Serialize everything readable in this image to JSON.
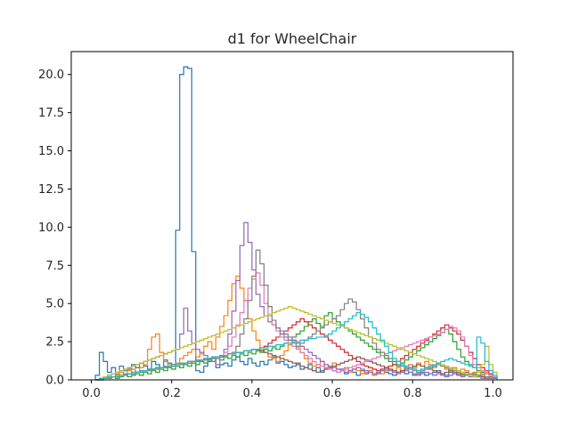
{
  "chart_data": {
    "type": "histogram-step",
    "title": "d1 for WheelChair",
    "xlabel": "",
    "ylabel": "",
    "xlim": [
      -0.05,
      1.05
    ],
    "ylim": [
      0,
      21.5
    ],
    "xticks": [
      0.0,
      0.2,
      0.4,
      0.6,
      0.8,
      1.0
    ],
    "xtick_labels": [
      "0.0",
      "0.2",
      "0.4",
      "0.6",
      "0.8",
      "1.0"
    ],
    "yticks": [
      0.0,
      2.5,
      5.0,
      7.5,
      10.0,
      12.5,
      15.0,
      17.5,
      20.0
    ],
    "ytick_labels": [
      "0.0",
      "2.5",
      "5.0",
      "7.5",
      "10.0",
      "12.5",
      "15.0",
      "17.5",
      "20.0"
    ],
    "grid": false,
    "bin_width": 0.01,
    "series": [
      {
        "color": "#1f77b4",
        "x_start": 0.01,
        "values": [
          0.3,
          1.8,
          1.2,
          0.5,
          0.8,
          0.4,
          0.9,
          0.6,
          0.7,
          1.0,
          0.8,
          1.1,
          0.9,
          0.7,
          1.2,
          1.0,
          0.8,
          1.3,
          1.1,
          1.0,
          9.8,
          20.0,
          20.5,
          20.4,
          8.4,
          0.6,
          0.5,
          0.9,
          1.2,
          1.4,
          0.8,
          1.0,
          1.1,
          0.9,
          1.3,
          1.5,
          1.2,
          1.0,
          1.4,
          1.1,
          0.9,
          1.2,
          1.0,
          1.3,
          1.5,
          1.1,
          1.2,
          1.0,
          0.8,
          0.9,
          1.1,
          0.7,
          0.8,
          1.0,
          0.6,
          0.8,
          0.5,
          0.7,
          0.9,
          0.6,
          0.5,
          0.7,
          0.4,
          0.6,
          0.5,
          0.3,
          0.6,
          0.4,
          0.5,
          0.3,
          0.4,
          0.6,
          0.5,
          0.4,
          0.3,
          0.5,
          0.6,
          0.4,
          0.5,
          0.3,
          0.4,
          0.5,
          0.3,
          0.4,
          0.5,
          0.6,
          0.4,
          0.3,
          0.5,
          0.4,
          0.3,
          0.4,
          0.5,
          0.3,
          0.4,
          0.3,
          0.5,
          0.4,
          0.3,
          0.2
        ]
      },
      {
        "color": "#ff7f0e",
        "x_start": 0.01,
        "values": [
          0.0,
          0.1,
          0.2,
          0.3,
          0.2,
          0.4,
          0.5,
          0.3,
          0.6,
          0.7,
          0.5,
          0.8,
          1.0,
          2.0,
          2.8,
          3.0,
          1.8,
          1.2,
          1.0,
          0.9,
          1.1,
          1.4,
          1.6,
          1.8,
          2.0,
          1.5,
          1.7,
          2.2,
          2.5,
          2.0,
          2.8,
          3.5,
          4.2,
          5.2,
          6.3,
          6.8,
          6.0,
          5.2,
          4.0,
          3.2,
          2.6,
          2.0,
          1.8,
          1.5,
          1.4,
          1.2,
          1.6,
          1.9,
          2.3,
          2.6,
          2.1,
          1.8,
          1.4,
          1.1,
          0.9,
          1.0,
          1.2,
          0.8,
          0.9,
          1.1,
          0.7,
          0.6,
          0.8,
          0.5,
          0.7,
          0.6,
          0.4,
          0.5,
          0.6,
          0.3,
          0.5,
          0.4,
          0.6,
          0.7,
          0.5,
          0.8,
          0.6,
          0.9,
          1.0,
          0.8,
          1.1,
          0.9,
          1.2,
          1.0,
          0.8,
          1.1,
          0.9,
          0.7,
          0.6,
          0.8,
          0.5,
          0.7,
          0.6,
          0.4,
          0.5,
          0.3,
          0.4,
          0.5,
          0.3,
          0.2
        ]
      },
      {
        "color": "#2ca02c",
        "x_start": 0.01,
        "values": [
          0.0,
          0.0,
          0.1,
          0.1,
          0.2,
          0.1,
          0.2,
          0.3,
          0.2,
          0.3,
          0.4,
          0.3,
          0.5,
          0.4,
          0.6,
          0.5,
          0.7,
          0.6,
          0.8,
          0.7,
          0.9,
          0.8,
          1.0,
          0.9,
          1.1,
          1.0,
          1.2,
          1.1,
          1.3,
          1.2,
          1.4,
          1.3,
          1.5,
          1.4,
          1.6,
          1.5,
          1.7,
          1.6,
          1.8,
          1.7,
          1.9,
          1.8,
          2.0,
          1.9,
          2.1,
          2.0,
          2.2,
          2.4,
          2.6,
          2.8,
          3.0,
          3.2,
          3.5,
          3.8,
          4.0,
          3.7,
          3.5,
          4.2,
          4.4,
          4.0,
          3.8,
          3.6,
          3.4,
          3.2,
          3.0,
          2.8,
          2.6,
          2.4,
          2.2,
          2.0,
          1.8,
          1.6,
          1.4,
          1.2,
          1.0,
          0.9,
          1.1,
          1.3,
          1.5,
          1.7,
          1.9,
          2.1,
          2.3,
          2.5,
          2.7,
          2.9,
          3.1,
          3.3,
          3.0,
          2.5,
          2.0,
          1.5,
          1.2,
          1.0,
          0.8,
          0.6,
          0.5,
          0.4,
          0.3,
          0.2
        ]
      },
      {
        "color": "#d62728",
        "x_start": 0.01,
        "values": [
          0.0,
          0.1,
          0.1,
          0.2,
          0.2,
          0.3,
          0.3,
          0.4,
          0.4,
          0.5,
          0.5,
          0.6,
          0.6,
          0.7,
          0.7,
          0.8,
          0.8,
          0.9,
          0.9,
          1.0,
          1.0,
          1.1,
          1.1,
          1.2,
          1.2,
          1.3,
          1.3,
          1.4,
          1.4,
          1.5,
          1.5,
          1.6,
          1.6,
          1.7,
          1.7,
          1.8,
          1.8,
          1.9,
          1.9,
          2.0,
          2.0,
          2.1,
          2.2,
          2.4,
          2.6,
          2.8,
          3.0,
          3.2,
          3.4,
          3.6,
          3.8,
          4.0,
          3.8,
          3.6,
          3.4,
          3.2,
          3.0,
          2.8,
          2.6,
          2.4,
          2.2,
          2.0,
          1.8,
          1.6,
          1.4,
          1.2,
          1.0,
          0.9,
          0.8,
          0.7,
          0.6,
          0.7,
          0.8,
          0.9,
          1.0,
          1.2,
          1.4,
          1.6,
          1.8,
          2.0,
          2.2,
          2.4,
          2.6,
          2.8,
          3.0,
          3.2,
          3.4,
          3.6,
          3.4,
          3.2,
          3.0,
          2.6,
          2.2,
          1.8,
          1.4,
          1.0,
          0.8,
          0.6,
          0.4,
          0.2
        ]
      },
      {
        "color": "#9467bd",
        "x_start": 0.01,
        "values": [
          0.0,
          0.1,
          0.2,
          0.3,
          0.4,
          0.5,
          0.6,
          0.7,
          0.8,
          0.9,
          1.0,
          1.1,
          1.2,
          1.3,
          1.4,
          1.5,
          1.6,
          1.7,
          1.8,
          1.9,
          2.0,
          3.0,
          4.7,
          3.2,
          2.4,
          2.0,
          1.8,
          1.6,
          1.4,
          1.2,
          1.0,
          1.5,
          2.0,
          3.0,
          4.5,
          6.5,
          8.8,
          10.3,
          9.0,
          7.2,
          5.6,
          4.8,
          4.2,
          3.8,
          3.6,
          3.4,
          3.2,
          3.0,
          2.8,
          2.6,
          2.4,
          2.2,
          2.0,
          1.8,
          1.6,
          1.4,
          1.2,
          1.0,
          0.9,
          0.8,
          0.7,
          0.6,
          0.5,
          0.6,
          0.7,
          0.8,
          0.7,
          0.6,
          0.5,
          0.4,
          0.5,
          0.6,
          0.7,
          0.6,
          0.5,
          0.4,
          0.5,
          0.6,
          0.5,
          0.4,
          0.3,
          0.4,
          0.5,
          0.4,
          0.3,
          0.4,
          0.3,
          0.2,
          0.3,
          0.4,
          0.3,
          0.2,
          0.3,
          0.2,
          0.3,
          0.2,
          0.1,
          0.2,
          0.1,
          0.1
        ]
      },
      {
        "color": "#8c564b",
        "x_start": 0.01,
        "values": [
          0.0,
          0.1,
          0.1,
          0.2,
          0.2,
          0.3,
          0.3,
          0.4,
          0.4,
          0.5,
          0.5,
          0.6,
          0.6,
          0.7,
          0.7,
          0.8,
          0.8,
          0.9,
          0.9,
          1.0,
          1.0,
          1.1,
          1.1,
          1.2,
          1.2,
          1.3,
          1.3,
          1.4,
          1.4,
          1.5,
          1.5,
          1.6,
          1.6,
          1.7,
          1.7,
          1.8,
          1.8,
          1.9,
          1.9,
          2.0,
          2.0,
          1.9,
          1.8,
          1.7,
          1.6,
          1.5,
          1.4,
          1.3,
          1.2,
          1.1,
          1.0,
          0.9,
          0.8,
          0.7,
          0.6,
          0.5,
          0.6,
          0.7,
          0.8,
          0.9,
          1.0,
          1.1,
          1.2,
          1.3,
          1.4,
          1.5,
          1.4,
          1.3,
          1.2,
          1.1,
          1.0,
          0.9,
          0.8,
          0.7,
          0.6,
          0.5,
          0.6,
          0.7,
          0.8,
          0.9,
          1.0,
          0.9,
          0.8,
          0.7,
          0.6,
          0.5,
          0.4,
          0.5,
          0.6,
          0.5,
          0.4,
          0.3,
          0.4,
          0.3,
          0.2,
          0.3,
          0.2,
          0.1,
          0.2,
          0.1
        ]
      },
      {
        "color": "#e377c2",
        "x_start": 0.01,
        "values": [
          0.0,
          0.0,
          0.1,
          0.1,
          0.2,
          0.2,
          0.3,
          0.3,
          0.4,
          0.4,
          0.5,
          0.5,
          0.6,
          0.6,
          0.7,
          0.7,
          0.8,
          0.8,
          0.9,
          0.9,
          1.0,
          1.0,
          1.1,
          1.1,
          1.2,
          1.2,
          1.3,
          1.3,
          1.4,
          1.4,
          1.5,
          1.6,
          1.8,
          2.2,
          2.8,
          3.6,
          4.4,
          5.2,
          6.0,
          6.6,
          7.0,
          6.2,
          5.0,
          4.2,
          3.6,
          3.2,
          2.8,
          2.6,
          2.4,
          2.2,
          2.0,
          1.8,
          1.6,
          1.4,
          1.2,
          1.0,
          0.9,
          0.8,
          0.7,
          0.6,
          0.5,
          0.6,
          0.7,
          0.8,
          0.9,
          1.0,
          1.1,
          1.2,
          1.3,
          1.4,
          1.5,
          1.6,
          1.7,
          1.8,
          1.9,
          2.0,
          2.1,
          2.2,
          2.3,
          2.4,
          2.5,
          2.6,
          2.7,
          2.8,
          2.9,
          3.0,
          3.1,
          3.3,
          3.5,
          3.4,
          3.2,
          2.8,
          2.2,
          1.6,
          1.0,
          0.8,
          0.6,
          0.4,
          0.3,
          0.2
        ]
      },
      {
        "color": "#7f7f7f",
        "x_start": 0.01,
        "values": [
          0.0,
          0.0,
          0.1,
          0.1,
          0.2,
          0.2,
          0.3,
          0.3,
          0.4,
          0.4,
          0.5,
          0.5,
          0.6,
          0.6,
          0.7,
          0.7,
          0.8,
          0.8,
          0.9,
          0.9,
          1.0,
          1.0,
          1.1,
          1.1,
          1.2,
          1.2,
          1.3,
          1.3,
          1.4,
          1.4,
          1.5,
          1.5,
          1.6,
          1.7,
          1.8,
          2.2,
          3.0,
          4.0,
          5.2,
          6.8,
          8.5,
          7.6,
          6.2,
          4.8,
          3.9,
          3.4,
          3.0,
          2.8,
          2.6,
          2.4,
          2.2,
          2.4,
          2.6,
          2.8,
          3.0,
          3.2,
          3.4,
          3.6,
          3.8,
          4.0,
          4.2,
          4.6,
          5.0,
          5.3,
          5.1,
          4.6,
          4.0,
          3.4,
          2.8,
          2.4,
          2.0,
          1.8,
          1.6,
          1.4,
          1.2,
          1.0,
          0.9,
          0.8,
          0.7,
          0.6,
          0.5,
          0.6,
          0.7,
          0.8,
          0.9,
          1.0,
          0.9,
          0.8,
          0.7,
          0.6,
          0.5,
          0.4,
          0.3,
          0.4,
          0.3,
          0.2,
          0.3,
          0.2,
          0.1,
          0.1
        ]
      },
      {
        "color": "#bcbd22",
        "x_start": 0.01,
        "values": [
          0.0,
          0.1,
          0.2,
          0.3,
          0.4,
          0.5,
          0.6,
          0.7,
          0.8,
          0.9,
          1.0,
          1.1,
          1.2,
          1.3,
          1.4,
          1.5,
          1.6,
          1.7,
          1.8,
          1.9,
          2.0,
          2.1,
          2.2,
          2.3,
          2.4,
          2.5,
          2.6,
          2.7,
          2.8,
          2.9,
          3.0,
          3.1,
          3.2,
          3.3,
          3.4,
          3.5,
          3.6,
          3.7,
          3.8,
          3.9,
          4.0,
          4.1,
          4.2,
          4.3,
          4.4,
          4.5,
          4.6,
          4.7,
          4.8,
          4.7,
          4.6,
          4.5,
          4.4,
          4.3,
          4.2,
          4.1,
          4.0,
          3.9,
          3.8,
          3.7,
          3.6,
          3.5,
          3.4,
          3.3,
          3.2,
          3.1,
          3.0,
          2.9,
          2.8,
          2.7,
          2.6,
          2.5,
          2.4,
          2.3,
          2.2,
          2.1,
          2.0,
          1.9,
          1.8,
          1.7,
          1.6,
          1.5,
          1.4,
          1.3,
          1.2,
          1.1,
          1.0,
          0.9,
          0.8,
          0.7,
          0.6,
          0.5,
          0.4,
          0.3,
          0.2,
          0.5,
          1.0,
          2.2,
          1.0,
          0.5
        ]
      },
      {
        "color": "#17becf",
        "x_start": 0.01,
        "values": [
          0.0,
          0.1,
          0.1,
          0.2,
          0.2,
          0.3,
          0.3,
          0.4,
          0.4,
          0.5,
          0.5,
          0.6,
          0.6,
          0.7,
          0.7,
          0.8,
          0.8,
          0.9,
          0.9,
          1.0,
          1.0,
          1.1,
          1.1,
          1.2,
          1.2,
          1.3,
          1.3,
          1.4,
          1.4,
          1.5,
          1.5,
          1.6,
          1.6,
          1.7,
          1.7,
          1.8,
          1.8,
          1.9,
          1.9,
          2.0,
          2.0,
          2.1,
          2.1,
          2.2,
          2.2,
          2.3,
          2.3,
          2.4,
          2.4,
          2.5,
          2.5,
          2.6,
          2.6,
          2.7,
          2.7,
          2.8,
          2.8,
          2.9,
          3.0,
          3.2,
          3.4,
          3.6,
          3.8,
          4.0,
          4.2,
          4.4,
          4.3,
          4.1,
          3.8,
          3.4,
          3.0,
          2.6,
          2.2,
          1.8,
          1.4,
          1.2,
          1.0,
          0.9,
          0.8,
          0.7,
          0.6,
          0.7,
          0.8,
          0.9,
          1.0,
          1.1,
          1.2,
          1.3,
          1.4,
          1.3,
          1.2,
          1.1,
          1.0,
          0.9,
          0.8,
          2.8,
          2.4,
          1.2,
          0.6,
          0.3
        ]
      }
    ]
  }
}
